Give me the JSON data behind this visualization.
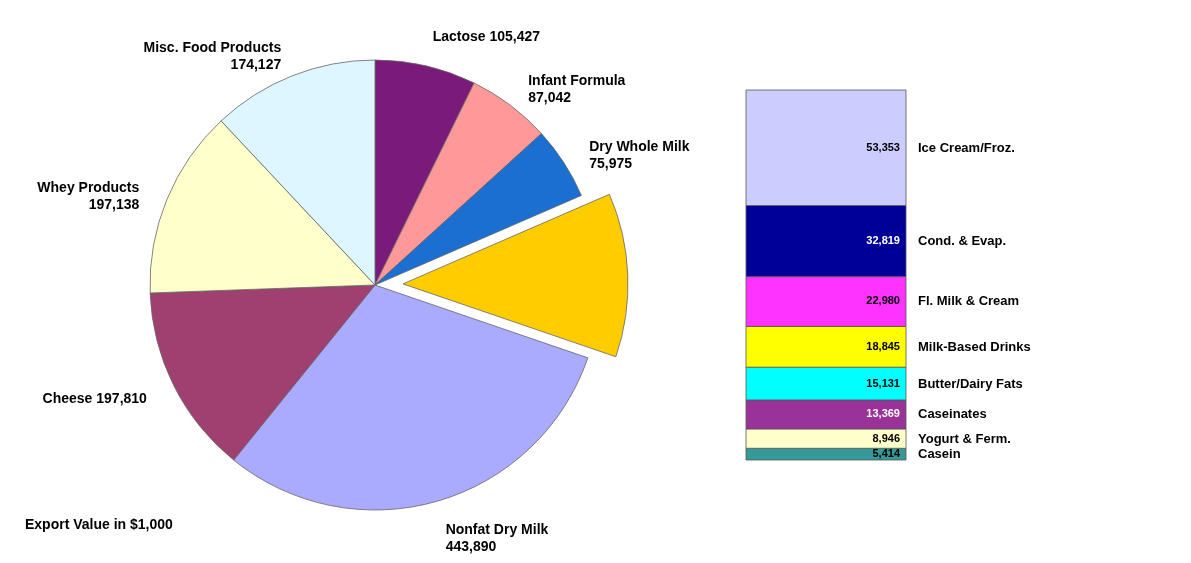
{
  "chart_data": [
    {
      "type": "pie",
      "legend": false,
      "categories": [
        "Lactose",
        "Infant Formula",
        "Dry Whole Milk",
        null,
        "Nonfat Dry Milk",
        "Cheese",
        "Whey Products",
        "Misc. Food Products"
      ],
      "values": [
        105427,
        87042,
        75975,
        170857,
        443890,
        197810,
        197138,
        174127
      ],
      "value_labels": [
        "105,427",
        "87,042",
        "75,975",
        null,
        "443,890",
        "197,810",
        "197,138",
        "174,127"
      ],
      "colors": [
        "#7a1a7a",
        "#ff9999",
        "#1a6fd0",
        "#ffcc00",
        "#aaaaff",
        "#a04070",
        "#ffffcc",
        "#ddf6ff"
      ],
      "annotations": [
        "Export Value in $1,000"
      ]
    },
    {
      "type": "bar",
      "stacked": true,
      "legend": false,
      "tick_labels": false,
      "categories": [
        null
      ],
      "series": [
        {
          "name": "Casein",
          "color": "#339999",
          "values": [
            5414
          ],
          "value_labels": [
            "5,414"
          ]
        },
        {
          "name": "Yogurt & Ferm.",
          "color": "#ffffcc",
          "values": [
            8946
          ],
          "value_labels": [
            "8,946"
          ]
        },
        {
          "name": "Caseinates",
          "color": "#993399",
          "values": [
            13369
          ],
          "value_labels": [
            "13,369"
          ]
        },
        {
          "name": "Butter/Dairy Fats",
          "color": "#00ffff",
          "values": [
            15131
          ],
          "value_labels": [
            "15,131"
          ]
        },
        {
          "name": "Milk-Based Drinks",
          "color": "#ffff00",
          "values": [
            18845
          ],
          "value_labels": [
            "18,845"
          ]
        },
        {
          "name": "Fl. Milk & Cream",
          "color": "#ff33ff",
          "values": [
            22980
          ],
          "value_labels": [
            "22,980"
          ]
        },
        {
          "name": "Cond. & Evap.",
          "color": "#000099",
          "values": [
            32819
          ],
          "value_labels": [
            "32,819"
          ]
        },
        {
          "name": "Ice Cream/Froz.",
          "color": "#ccccff",
          "values": [
            53353
          ],
          "value_labels": [
            "53,353"
          ]
        }
      ]
    }
  ]
}
